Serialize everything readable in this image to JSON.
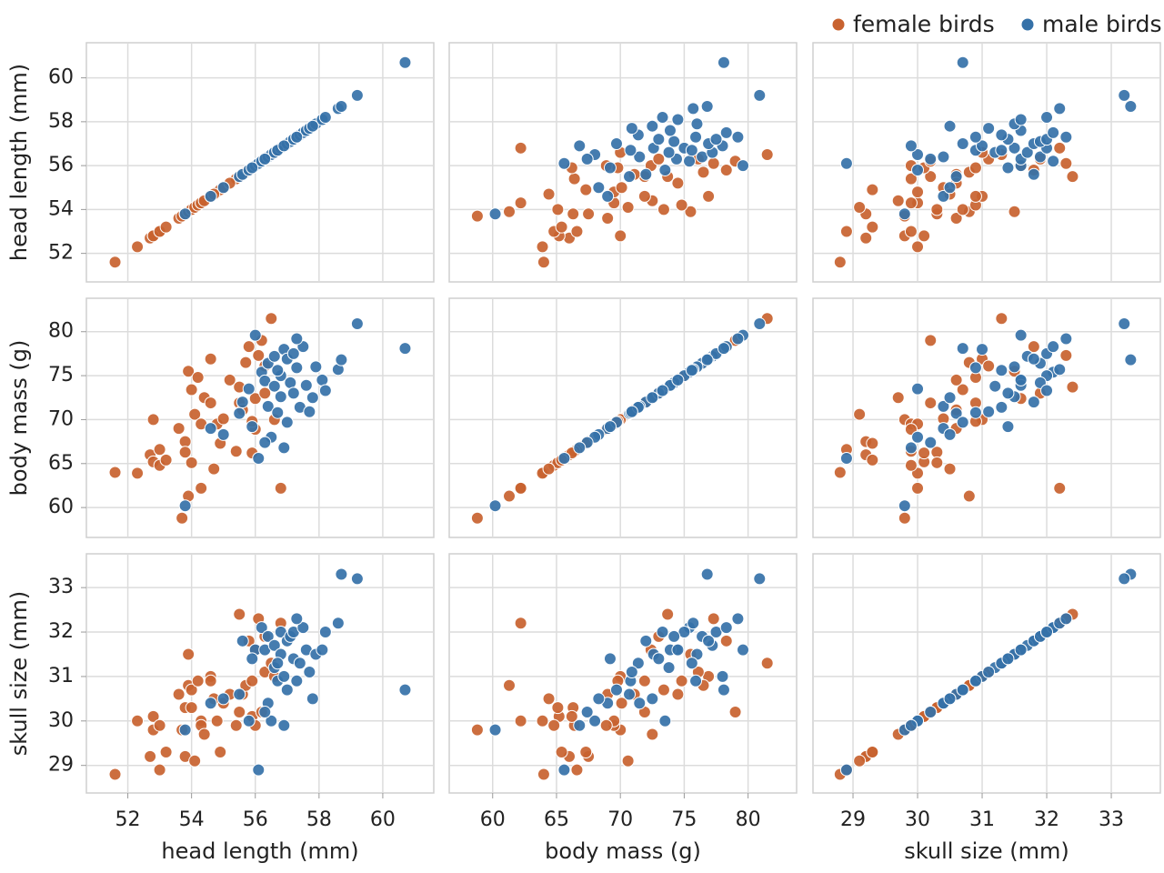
{
  "chart_data": {
    "type": "scatter-matrix",
    "grid": true,
    "legend": "top-right",
    "variables": [
      {
        "label": "head length (mm)",
        "lim": [
          50.7,
          61.6
        ],
        "ticks": [
          52,
          54,
          56,
          58,
          60
        ]
      },
      {
        "label": "body mass (g)",
        "lim": [
          56.6,
          83.8
        ],
        "ticks": [
          60,
          65,
          70,
          75,
          80
        ]
      },
      {
        "label": "skull size (mm)",
        "lim": [
          28.38,
          33.76
        ],
        "ticks": [
          29,
          30,
          31,
          32,
          33
        ]
      }
    ],
    "series": [
      {
        "name": "female birds",
        "color": "#c8622f",
        "values": [
          [
            51.6,
            52.3,
            52.7,
            52.8,
            53.0,
            52.8,
            53.0,
            53.6,
            53.7,
            53.8,
            53.8,
            53.9,
            53.9,
            54.0,
            54.0,
            54.1,
            54.2,
            54.3,
            54.3,
            54.4,
            54.6,
            54.6,
            54.8,
            54.9,
            55.0,
            55.4,
            55.5,
            55.5,
            55.6,
            55.7,
            55.8,
            55.9,
            56.0,
            56.1,
            56.2,
            56.3,
            56.5,
            56.6,
            56.8,
            55.2,
            56.0,
            54.7,
            53.2,
            56.3,
            55.9
          ],
          [
            64.0,
            63.9,
            66.0,
            65.2,
            66.6,
            70.0,
            64.8,
            69.0,
            58.8,
            67.5,
            66.3,
            75.5,
            61.3,
            65.1,
            73.4,
            70.6,
            74.8,
            62.2,
            69.5,
            72.5,
            76.9,
            71.9,
            69.5,
            67.3,
            70.1,
            66.4,
            71.9,
            73.7,
            71.1,
            76.5,
            78.3,
            66.2,
            72.4,
            77.3,
            79.0,
            76.1,
            81.5,
            70.0,
            62.2,
            74.5,
            68.9,
            64.4,
            65.4,
            73.0,
            69.8
          ],
          [
            28.8,
            30.0,
            29.2,
            30.1,
            28.9,
            29.8,
            29.9,
            30.6,
            29.8,
            29.2,
            30.3,
            31.5,
            30.8,
            30.3,
            30.7,
            29.1,
            30.9,
            30.0,
            29.9,
            29.7,
            31.0,
            30.9,
            30.0,
            29.3,
            30.4,
            29.9,
            30.2,
            32.4,
            30.6,
            30.8,
            31.8,
            30.1,
            31.6,
            32.3,
            30.2,
            31.1,
            31.3,
            31.0,
            32.2,
            30.6,
            29.9,
            30.5,
            29.3,
            31.9,
            30.9
          ]
        ]
      },
      {
        "name": "male birds",
        "color": "#3571a8",
        "values": [
          [
            53.8,
            54.6,
            55.0,
            55.5,
            55.6,
            55.8,
            56.0,
            56.1,
            56.2,
            56.3,
            56.4,
            56.4,
            56.5,
            56.6,
            56.6,
            56.7,
            56.8,
            56.8,
            56.9,
            57.0,
            57.0,
            57.1,
            57.2,
            57.2,
            57.3,
            57.4,
            57.5,
            57.6,
            57.7,
            57.9,
            58.1,
            58.2,
            58.6,
            58.7,
            59.2,
            60.7,
            56.3,
            57.8,
            56.7,
            57.3,
            55.9,
            56.9
          ],
          [
            60.2,
            69.0,
            68.3,
            70.7,
            72.0,
            73.5,
            79.6,
            65.6,
            75.4,
            74.4,
            71.5,
            76.4,
            68.0,
            73.8,
            77.2,
            70.8,
            75.0,
            72.6,
            78.0,
            76.9,
            69.7,
            74.2,
            77.5,
            73.0,
            75.9,
            71.4,
            78.3,
            73.9,
            70.9,
            76.0,
            74.5,
            73.3,
            75.7,
            76.8,
            80.9,
            78.1,
            67.4,
            72.5,
            75.6,
            79.2,
            69.2,
            66.8
          ],
          [
            29.8,
            30.4,
            30.5,
            30.6,
            31.8,
            30.0,
            31.6,
            28.9,
            32.1,
            31.6,
            30.4,
            31.9,
            30.0,
            31.2,
            31.7,
            30.9,
            32.0,
            31.5,
            31.0,
            31.8,
            30.7,
            31.9,
            32.0,
            31.4,
            30.9,
            31.3,
            32.1,
            31.6,
            31.1,
            31.5,
            31.6,
            32.0,
            32.2,
            33.3,
            33.2,
            30.7,
            30.2,
            30.5,
            31.3,
            32.3,
            31.4,
            29.9
          ]
        ]
      }
    ]
  }
}
